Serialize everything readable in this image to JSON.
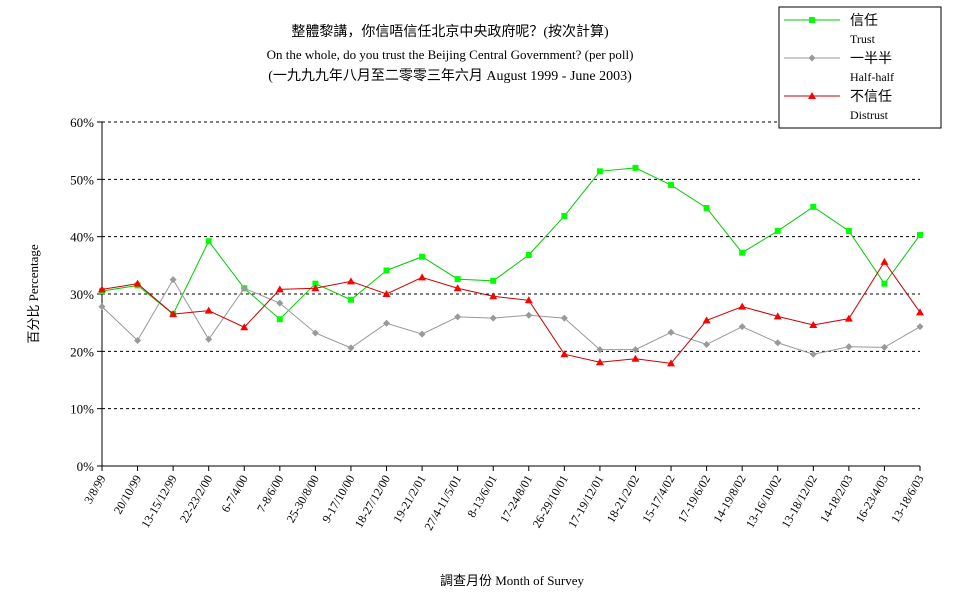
{
  "chart_data": {
    "type": "line",
    "title": "整體黎講，你信唔信任北京中央政府呢？(按次計算)",
    "subtitle": "On the whole, do you trust the Beijing Central Government?  (per poll)",
    "date_range": "(一九九九年八月至二零零三年六月 August 1999 - June 2003)",
    "xlabel": "調查月份 Month of Survey",
    "ylabel": "百分比 Percentage",
    "ylim": [
      0,
      60
    ],
    "y_ticks": [
      "0%",
      "10%",
      "20%",
      "30%",
      "40%",
      "50%",
      "60%"
    ],
    "grid": "horizontal-dashed",
    "legend_position": "top-right",
    "categories": [
      "3/8/99",
      "20/10/99",
      "13-15/12/99",
      "22-23/2/00",
      "6-7/4/00",
      "7-8/6/00",
      "25-30/8/00",
      "9-17/10/00",
      "18-27/12/00",
      "19-21/2/01",
      "27/4-11/5/01",
      "8-13/6/01",
      "17-24/8/01",
      "26-29/10/01",
      "17-19/12/01",
      "18-21/2/02",
      "15-17/4/02",
      "17-19/6/02",
      "14-19/8/02",
      "13-16/10/02",
      "13-18/12/02",
      "14-18/2/03",
      "16-23/4/03",
      "13-18/6/03"
    ],
    "series": [
      {
        "name": "信任",
        "name_en": "Trust",
        "color": "#00ff00",
        "line_color": "#00cc00",
        "marker": "square",
        "values": [
          30.5,
          31.5,
          26.5,
          39.2,
          31.0,
          25.6,
          31.8,
          29.0,
          34.1,
          36.5,
          32.6,
          32.3,
          36.8,
          43.6,
          51.4,
          52.0,
          49.0,
          45.0,
          37.2,
          41.0,
          45.2,
          41.0,
          31.8,
          40.3
        ]
      },
      {
        "name": "一半半",
        "name_en": "Half-half",
        "color": "#999999",
        "line_color": "#999999",
        "marker": "diamond",
        "values": [
          27.8,
          21.9,
          32.5,
          22.1,
          31.0,
          28.4,
          23.2,
          20.6,
          24.9,
          23.0,
          26.0,
          25.8,
          26.3,
          25.8,
          20.3,
          20.3,
          23.3,
          21.2,
          24.3,
          21.5,
          19.5,
          20.8,
          20.7,
          24.3
        ]
      },
      {
        "name": "不信任",
        "name_en": "Distrust",
        "color": "#ff0000",
        "line_color": "#cc0000",
        "marker": "triangle",
        "values": [
          30.8,
          31.8,
          26.5,
          27.1,
          24.2,
          30.8,
          31.0,
          32.2,
          30.0,
          32.9,
          31.0,
          29.6,
          28.9,
          19.5,
          18.1,
          18.7,
          17.9,
          25.4,
          27.8,
          26.1,
          24.6,
          25.7,
          35.6,
          26.8
        ]
      }
    ]
  }
}
